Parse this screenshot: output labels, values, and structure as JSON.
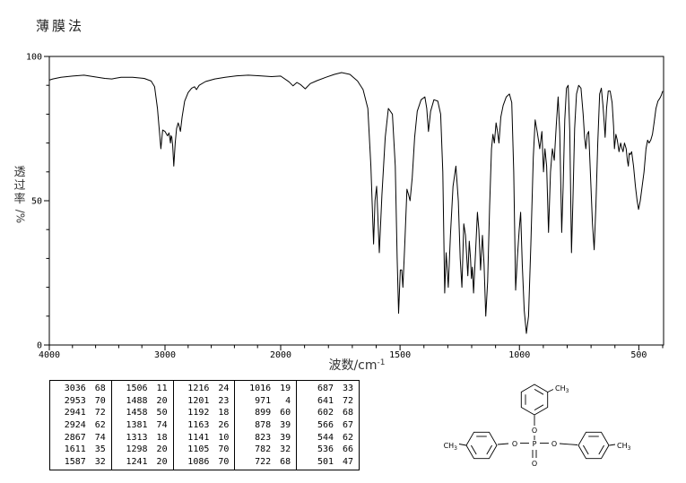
{
  "title": "薄膜法",
  "plot": {
    "xlabel_base": "波数/cm",
    "xlabel_sup": "-1",
    "ylabel_chars": "透过率",
    "ylabel_suffix": "/%",
    "x_major_ticks": [
      4000,
      3000,
      2000,
      1500,
      1000,
      500
    ],
    "y_major_ticks": [
      0,
      50,
      100
    ]
  },
  "chart_data": {
    "type": "line",
    "title": "薄膜法",
    "xlabel": "波数/cm⁻¹",
    "ylabel": "透过率/%",
    "x_axis": {
      "range": [
        4000,
        400
      ],
      "split_at": 2000,
      "note": "split wavenumber scale: 4000-2000 compressed, 2000-400 expanded, values decrease left to right"
    },
    "ylim": [
      0,
      100
    ],
    "grid": false,
    "legend": "none",
    "series": [
      {
        "name": "IR transmittance spectrum (thin film)",
        "points": [
          [
            4000,
            91.8
          ],
          [
            3970,
            92.2
          ],
          [
            3900,
            92.8
          ],
          [
            3800,
            93.2
          ],
          [
            3700,
            93.5
          ],
          [
            3620,
            93.0
          ],
          [
            3520,
            92.4
          ],
          [
            3460,
            92.2
          ],
          [
            3380,
            92.8
          ],
          [
            3280,
            92.8
          ],
          [
            3180,
            92.4
          ],
          [
            3120,
            91.5
          ],
          [
            3090,
            89.5
          ],
          [
            3065,
            82
          ],
          [
            3036,
            68
          ],
          [
            3020,
            74.5
          ],
          [
            3000,
            74
          ],
          [
            2978,
            72.5
          ],
          [
            2965,
            73.5
          ],
          [
            2953,
            70
          ],
          [
            2947,
            72.5
          ],
          [
            2941,
            72
          ],
          [
            2933,
            69
          ],
          [
            2924,
            62
          ],
          [
            2912,
            70
          ],
          [
            2900,
            75
          ],
          [
            2886,
            77
          ],
          [
            2875,
            75.5
          ],
          [
            2867,
            74
          ],
          [
            2852,
            79
          ],
          [
            2830,
            84.5
          ],
          [
            2800,
            87.5
          ],
          [
            2770,
            89
          ],
          [
            2745,
            89.5
          ],
          [
            2728,
            88.5
          ],
          [
            2705,
            90
          ],
          [
            2650,
            91.3
          ],
          [
            2570,
            92.2
          ],
          [
            2480,
            92.8
          ],
          [
            2380,
            93.3
          ],
          [
            2280,
            93.5
          ],
          [
            2180,
            93.3
          ],
          [
            2080,
            93
          ],
          [
            2000,
            93.2
          ],
          [
            1965,
            91.2
          ],
          [
            1948,
            89.8
          ],
          [
            1932,
            91
          ],
          [
            1916,
            90.2
          ],
          [
            1897,
            88.8
          ],
          [
            1876,
            90.6
          ],
          [
            1848,
            91.6
          ],
          [
            1810,
            92.8
          ],
          [
            1775,
            93.8
          ],
          [
            1745,
            94.4
          ],
          [
            1710,
            93.8
          ],
          [
            1678,
            91.5
          ],
          [
            1655,
            88.5
          ],
          [
            1635,
            82
          ],
          [
            1622,
            62
          ],
          [
            1611,
            35
          ],
          [
            1605,
            50
          ],
          [
            1598,
            55
          ],
          [
            1587,
            32
          ],
          [
            1576,
            52
          ],
          [
            1562,
            72
          ],
          [
            1549,
            82
          ],
          [
            1532,
            80
          ],
          [
            1520,
            62
          ],
          [
            1512,
            30
          ],
          [
            1506,
            11
          ],
          [
            1499,
            26
          ],
          [
            1493,
            26
          ],
          [
            1488,
            20
          ],
          [
            1480,
            35
          ],
          [
            1471,
            54
          ],
          [
            1464,
            52
          ],
          [
            1458,
            50
          ],
          [
            1449,
            58
          ],
          [
            1439,
            72
          ],
          [
            1428,
            81
          ],
          [
            1412,
            85
          ],
          [
            1396,
            86
          ],
          [
            1388,
            82
          ],
          [
            1381,
            74
          ],
          [
            1372,
            81
          ],
          [
            1358,
            85
          ],
          [
            1342,
            84.5
          ],
          [
            1330,
            80
          ],
          [
            1321,
            60
          ],
          [
            1313,
            18
          ],
          [
            1307,
            32
          ],
          [
            1302,
            26
          ],
          [
            1298,
            20
          ],
          [
            1289,
            38
          ],
          [
            1278,
            55
          ],
          [
            1266,
            62
          ],
          [
            1256,
            50
          ],
          [
            1248,
            30
          ],
          [
            1241,
            20
          ],
          [
            1233,
            42
          ],
          [
            1226,
            38
          ],
          [
            1216,
            24
          ],
          [
            1210,
            36
          ],
          [
            1205,
            30
          ],
          [
            1201,
            23
          ],
          [
            1197,
            27
          ],
          [
            1192,
            18
          ],
          [
            1184,
            32
          ],
          [
            1176,
            46
          ],
          [
            1170,
            40
          ],
          [
            1163,
            26
          ],
          [
            1155,
            38
          ],
          [
            1148,
            28
          ],
          [
            1141,
            10
          ],
          [
            1133,
            22
          ],
          [
            1125,
            48
          ],
          [
            1117,
            68
          ],
          [
            1111,
            73
          ],
          [
            1105,
            70
          ],
          [
            1098,
            77
          ],
          [
            1092,
            74
          ],
          [
            1086,
            70
          ],
          [
            1078,
            79
          ],
          [
            1068,
            83
          ],
          [
            1055,
            86
          ],
          [
            1042,
            87
          ],
          [
            1032,
            84
          ],
          [
            1024,
            60
          ],
          [
            1016,
            19
          ],
          [
            1009,
            30
          ],
          [
            1001,
            40
          ],
          [
            995,
            46
          ],
          [
            988,
            28
          ],
          [
            980,
            12
          ],
          [
            971,
            4
          ],
          [
            962,
            10
          ],
          [
            952,
            35
          ],
          [
            942,
            65
          ],
          [
            934,
            78
          ],
          [
            926,
            74
          ],
          [
            915,
            68
          ],
          [
            906,
            74
          ],
          [
            899,
            60
          ],
          [
            893,
            68
          ],
          [
            886,
            62
          ],
          [
            878,
            39
          ],
          [
            870,
            60
          ],
          [
            862,
            68
          ],
          [
            854,
            64
          ],
          [
            846,
            76
          ],
          [
            838,
            86
          ],
          [
            831,
            74
          ],
          [
            826,
            52
          ],
          [
            823,
            39
          ],
          [
            817,
            55
          ],
          [
            810,
            78
          ],
          [
            803,
            89
          ],
          [
            796,
            90
          ],
          [
            789,
            74
          ],
          [
            782,
            32
          ],
          [
            776,
            50
          ],
          [
            769,
            75
          ],
          [
            761,
            87
          ],
          [
            752,
            90
          ],
          [
            742,
            89
          ],
          [
            733,
            80
          ],
          [
            727,
            72
          ],
          [
            722,
            68
          ],
          [
            716,
            73
          ],
          [
            710,
            74
          ],
          [
            702,
            58
          ],
          [
            694,
            42
          ],
          [
            687,
            33
          ],
          [
            680,
            48
          ],
          [
            672,
            70
          ],
          [
            664,
            87
          ],
          [
            657,
            89
          ],
          [
            650,
            83
          ],
          [
            645,
            77
          ],
          [
            641,
            72
          ],
          [
            635,
            82
          ],
          [
            628,
            88
          ],
          [
            620,
            88
          ],
          [
            612,
            84
          ],
          [
            606,
            76
          ],
          [
            602,
            68
          ],
          [
            596,
            73
          ],
          [
            590,
            71
          ],
          [
            583,
            67
          ],
          [
            576,
            70
          ],
          [
            570,
            68
          ],
          [
            566,
            67
          ],
          [
            560,
            70
          ],
          [
            553,
            68
          ],
          [
            548,
            64
          ],
          [
            544,
            62
          ],
          [
            540,
            66.5
          ],
          [
            536,
            66
          ],
          [
            530,
            67
          ],
          [
            522,
            62
          ],
          [
            514,
            55
          ],
          [
            507,
            50
          ],
          [
            501,
            47
          ],
          [
            494,
            50
          ],
          [
            486,
            55
          ],
          [
            478,
            60
          ],
          [
            470,
            68
          ],
          [
            463,
            71
          ],
          [
            457,
            70
          ],
          [
            450,
            71
          ],
          [
            443,
            73
          ],
          [
            436,
            77
          ],
          [
            428,
            82
          ],
          [
            420,
            84.5
          ],
          [
            412,
            85.5
          ],
          [
            406,
            86.5
          ],
          [
            400,
            88
          ]
        ]
      }
    ]
  },
  "peak_table": {
    "columns": [
      [
        [
          3036,
          68
        ],
        [
          2953,
          70
        ],
        [
          2941,
          72
        ],
        [
          2924,
          62
        ],
        [
          2867,
          74
        ],
        [
          1611,
          35
        ],
        [
          1587,
          32
        ]
      ],
      [
        [
          1506,
          11
        ],
        [
          1488,
          20
        ],
        [
          1458,
          50
        ],
        [
          1381,
          74
        ],
        [
          1313,
          18
        ],
        [
          1298,
          20
        ],
        [
          1241,
          20
        ]
      ],
      [
        [
          1216,
          24
        ],
        [
          1201,
          23
        ],
        [
          1192,
          18
        ],
        [
          1163,
          26
        ],
        [
          1141,
          10
        ],
        [
          1105,
          70
        ],
        [
          1086,
          70
        ]
      ],
      [
        [
          1016,
          19
        ],
        [
          971,
          4
        ],
        [
          899,
          60
        ],
        [
          878,
          39
        ],
        [
          823,
          39
        ],
        [
          782,
          32
        ],
        [
          722,
          68
        ]
      ],
      [
        [
          687,
          33
        ],
        [
          641,
          72
        ],
        [
          602,
          68
        ],
        [
          566,
          67
        ],
        [
          544,
          62
        ],
        [
          536,
          66
        ],
        [
          501,
          47
        ]
      ]
    ]
  },
  "molecule": {
    "name": "tricresyl phosphate structure",
    "methyl_c": "CH",
    "methyl_sub": "3",
    "oxygen": "O",
    "phosphorus": "P"
  }
}
